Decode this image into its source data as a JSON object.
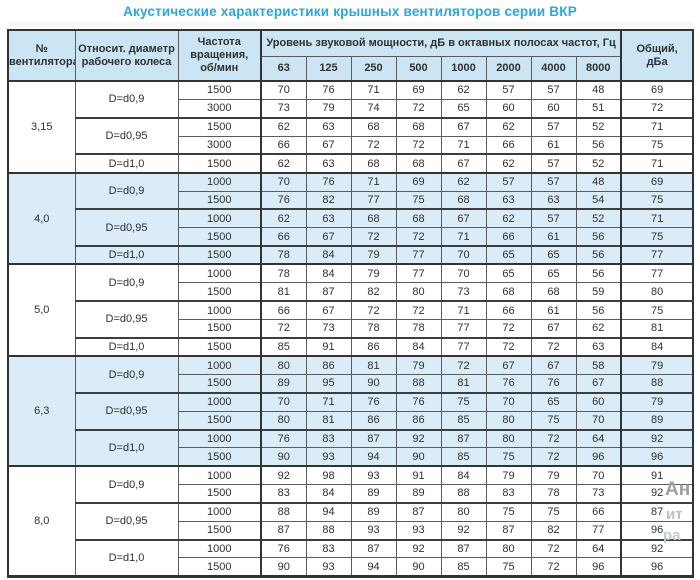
{
  "title": "Акустические характеристики крышных вентиляторов серии ВКР",
  "colors": {
    "title_text": "#29a7de",
    "header_bg": "#cbe5f4",
    "band_bg": "#d9ecf8",
    "border_heavy": "#333333",
    "border_light": "#5c5c5c",
    "cell_text": "#303030"
  },
  "watermark": {
    "line1": "Ан",
    "line2": "ит",
    "line3": "ра"
  },
  "table": {
    "headers": {
      "fan": "№\nвентилятора",
      "diameter": "Относит. диаметр\nрабочего колеса",
      "speed": "Частота\nвращения,\nоб/мин",
      "span": "Уровень звуковой мощности, дБ в октавных полосах частот, Гц",
      "frequencies": [
        "63",
        "125",
        "250",
        "500",
        "1000",
        "2000",
        "4000",
        "8000"
      ],
      "total": "Общий,\nдБа"
    },
    "groups": [
      {
        "fan": "3,15",
        "shaded": false,
        "subgroups": [
          {
            "diameter": "D=d0,9",
            "rows": [
              {
                "speed": "1500",
                "levels": [
                  70,
                  76,
                  71,
                  69,
                  62,
                  57,
                  57,
                  48
                ],
                "total": 69
              },
              {
                "speed": "3000",
                "levels": [
                  73,
                  79,
                  74,
                  72,
                  65,
                  60,
                  60,
                  51
                ],
                "total": 72
              }
            ]
          },
          {
            "diameter": "D=d0,95",
            "rows": [
              {
                "speed": "1500",
                "levels": [
                  62,
                  63,
                  68,
                  68,
                  67,
                  62,
                  57,
                  52
                ],
                "total": 71
              },
              {
                "speed": "3000",
                "levels": [
                  66,
                  67,
                  72,
                  72,
                  71,
                  66,
                  61,
                  56
                ],
                "total": 75
              }
            ]
          },
          {
            "diameter": "D=d1,0",
            "rows": [
              {
                "speed": "1500",
                "levels": [
                  62,
                  63,
                  68,
                  68,
                  67,
                  62,
                  57,
                  52
                ],
                "total": 71
              }
            ]
          }
        ]
      },
      {
        "fan": "4,0",
        "shaded": true,
        "subgroups": [
          {
            "diameter": "D=d0,9",
            "rows": [
              {
                "speed": "1000",
                "levels": [
                  70,
                  76,
                  71,
                  69,
                  62,
                  57,
                  57,
                  48
                ],
                "total": 69
              },
              {
                "speed": "1500",
                "levels": [
                  76,
                  82,
                  77,
                  75,
                  68,
                  63,
                  63,
                  54
                ],
                "total": 75
              }
            ]
          },
          {
            "diameter": "D=d0,95",
            "rows": [
              {
                "speed": "1000",
                "levels": [
                  62,
                  63,
                  68,
                  68,
                  67,
                  62,
                  57,
                  52
                ],
                "total": 71
              },
              {
                "speed": "1500",
                "levels": [
                  66,
                  67,
                  72,
                  72,
                  71,
                  66,
                  61,
                  56
                ],
                "total": 75
              }
            ]
          },
          {
            "diameter": "D=d1,0",
            "rows": [
              {
                "speed": "1500",
                "levels": [
                  78,
                  84,
                  79,
                  77,
                  70,
                  65,
                  65,
                  56
                ],
                "total": 77
              }
            ]
          }
        ]
      },
      {
        "fan": "5,0",
        "shaded": false,
        "subgroups": [
          {
            "diameter": "D=d0,9",
            "rows": [
              {
                "speed": "1000",
                "levels": [
                  78,
                  84,
                  79,
                  77,
                  70,
                  65,
                  65,
                  56
                ],
                "total": 77
              },
              {
                "speed": "1500",
                "levels": [
                  81,
                  87,
                  82,
                  80,
                  73,
                  68,
                  68,
                  59
                ],
                "total": 80
              }
            ]
          },
          {
            "diameter": "D=d0,95",
            "rows": [
              {
                "speed": "1000",
                "levels": [
                  66,
                  67,
                  72,
                  72,
                  71,
                  66,
                  61,
                  56
                ],
                "total": 75
              },
              {
                "speed": "1500",
                "levels": [
                  72,
                  73,
                  78,
                  78,
                  77,
                  72,
                  67,
                  62
                ],
                "total": 81
              }
            ]
          },
          {
            "diameter": "D=d1,0",
            "rows": [
              {
                "speed": "1500",
                "levels": [
                  85,
                  91,
                  86,
                  84,
                  77,
                  72,
                  72,
                  63
                ],
                "total": 84
              }
            ]
          }
        ]
      },
      {
        "fan": "6,3",
        "shaded": true,
        "subgroups": [
          {
            "diameter": "D=d0,9",
            "rows": [
              {
                "speed": "1000",
                "levels": [
                  80,
                  86,
                  81,
                  79,
                  72,
                  67,
                  67,
                  58
                ],
                "total": 79
              },
              {
                "speed": "1500",
                "levels": [
                  89,
                  95,
                  90,
                  88,
                  81,
                  76,
                  76,
                  67
                ],
                "total": 88
              }
            ]
          },
          {
            "diameter": "D=d0,95",
            "rows": [
              {
                "speed": "1000",
                "levels": [
                  70,
                  71,
                  76,
                  76,
                  75,
                  70,
                  65,
                  60
                ],
                "total": 79
              },
              {
                "speed": "1500",
                "levels": [
                  80,
                  81,
                  86,
                  86,
                  85,
                  80,
                  75,
                  70
                ],
                "total": 89
              }
            ]
          },
          {
            "diameter": "D=d1,0",
            "rows": [
              {
                "speed": "1000",
                "levels": [
                  76,
                  83,
                  87,
                  92,
                  87,
                  80,
                  72,
                  64
                ],
                "total": 92
              },
              {
                "speed": "1500",
                "levels": [
                  90,
                  93,
                  94,
                  90,
                  85,
                  75,
                  72,
                  96
                ],
                "total": 96
              }
            ]
          }
        ]
      },
      {
        "fan": "8,0",
        "shaded": false,
        "subgroups": [
          {
            "diameter": "D=d0,9",
            "rows": [
              {
                "speed": "1000",
                "levels": [
                  92,
                  98,
                  93,
                  91,
                  84,
                  79,
                  79,
                  70
                ],
                "total": 91
              },
              {
                "speed": "1500",
                "levels": [
                  83,
                  84,
                  89,
                  89,
                  88,
                  83,
                  78,
                  73
                ],
                "total": 92
              }
            ]
          },
          {
            "diameter": "D=d0,95",
            "rows": [
              {
                "speed": "1000",
                "levels": [
                  88,
                  94,
                  89,
                  87,
                  80,
                  75,
                  75,
                  66
                ],
                "total": 87
              },
              {
                "speed": "1500",
                "levels": [
                  87,
                  88,
                  93,
                  93,
                  92,
                  87,
                  82,
                  77
                ],
                "total": 96
              }
            ]
          },
          {
            "diameter": "D=d1,0",
            "rows": [
              {
                "speed": "1000",
                "levels": [
                  76,
                  83,
                  87,
                  92,
                  87,
                  80,
                  72,
                  64
                ],
                "total": 92
              },
              {
                "speed": "1500",
                "levels": [
                  90,
                  93,
                  94,
                  90,
                  85,
                  75,
                  72,
                  96
                ],
                "total": 96
              }
            ]
          }
        ]
      }
    ]
  }
}
